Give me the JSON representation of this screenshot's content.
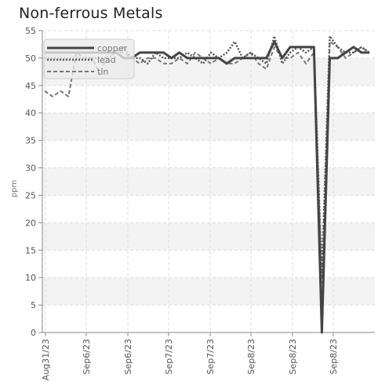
{
  "chart_data": {
    "type": "line",
    "title": "Non-ferrous Metals",
    "ylabel": "ppm",
    "xlabel": "",
    "ylim": [
      0,
      55
    ],
    "y_ticks": [
      0,
      5,
      10,
      15,
      20,
      25,
      30,
      35,
      40,
      45,
      50,
      55
    ],
    "x_tick_labels": [
      "Aug31/23",
      "Sep6/23",
      "Sep6/23",
      "Sep7/23",
      "Sep7/23",
      "Sep8/23",
      "Sep8/23",
      "Sep8/23"
    ],
    "grid": true,
    "legend_placement": "top-left",
    "series": [
      {
        "name": "copper",
        "color": "#444444",
        "style": "solid",
        "values": [
          51,
          51,
          51,
          51,
          51,
          51,
          51,
          51,
          51,
          51,
          50,
          50,
          51,
          51,
          51,
          51,
          50,
          51,
          50,
          50,
          50,
          50,
          50,
          49,
          50,
          50,
          50,
          50,
          50,
          53,
          50,
          52,
          52,
          52,
          52,
          0,
          50,
          50,
          51,
          52,
          51,
          51
        ]
      },
      {
        "name": "lead",
        "color": "#555555",
        "style": "dotted",
        "values": [
          50,
          50,
          50,
          50,
          50,
          50,
          50,
          50,
          50,
          51,
          52,
          50,
          50,
          49,
          51,
          50,
          50,
          50,
          51,
          50,
          49,
          51,
          50,
          51,
          53,
          50,
          51,
          50,
          49,
          54,
          49,
          51,
          52,
          51,
          52,
          10,
          54,
          52,
          51,
          51,
          52,
          51
        ]
      },
      {
        "name": "tin",
        "color": "#777777",
        "style": "dashed",
        "values": [
          44,
          43,
          44,
          43,
          51,
          50,
          50,
          47,
          51,
          51,
          51,
          50,
          49,
          50,
          50,
          49,
          49,
          50,
          49,
          51,
          50,
          49,
          50,
          49,
          49,
          50,
          51,
          49,
          48,
          52,
          50,
          50,
          51,
          49,
          51,
          9,
          53,
          52,
          50,
          51,
          52,
          51
        ]
      }
    ]
  }
}
